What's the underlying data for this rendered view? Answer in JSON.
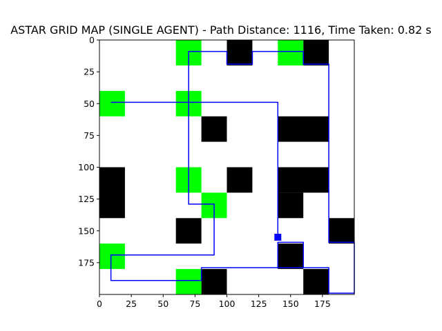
{
  "chart_data": {
    "type": "heatmap",
    "title": "ASTAR GRID MAP (SINGLE AGENT) - Path Distance: 1116, Time Taken: 0.82 s",
    "xlim": [
      0,
      200
    ],
    "ylim": [
      200,
      0
    ],
    "x_ticks": [
      0,
      25,
      50,
      75,
      100,
      125,
      150,
      175
    ],
    "y_ticks": [
      0,
      25,
      50,
      75,
      100,
      125,
      150,
      175
    ],
    "colors": {
      "background": "#ffffff",
      "obstacle": "#000000",
      "goal_cell": "#00ff00",
      "path": "#0000ff",
      "agent": "#0000ff"
    },
    "obstacles": [
      [
        100,
        0,
        20,
        20
      ],
      [
        160,
        0,
        20,
        20
      ],
      [
        80,
        60,
        20,
        20
      ],
      [
        140,
        60,
        40,
        20
      ],
      [
        0,
        100,
        20,
        40
      ],
      [
        100,
        100,
        20,
        20
      ],
      [
        140,
        100,
        40,
        20
      ],
      [
        140,
        120,
        20,
        20
      ],
      [
        60,
        140,
        20,
        20
      ],
      [
        180,
        140,
        20,
        20
      ],
      [
        140,
        160,
        20,
        20
      ],
      [
        80,
        180,
        20,
        20
      ],
      [
        160,
        180,
        20,
        20
      ]
    ],
    "goal_cells": [
      [
        60,
        0,
        20,
        20
      ],
      [
        140,
        0,
        20,
        20
      ],
      [
        0,
        40,
        20,
        20
      ],
      [
        60,
        40,
        20,
        20
      ],
      [
        60,
        100,
        20,
        20
      ],
      [
        80,
        120,
        20,
        20
      ],
      [
        0,
        160,
        20,
        20
      ],
      [
        60,
        180,
        20,
        20
      ]
    ],
    "path": [
      [
        140,
        155
      ],
      [
        140,
        49
      ],
      [
        9,
        49
      ],
      [
        9,
        49
      ],
      [
        70,
        49
      ],
      [
        70,
        9
      ],
      [
        100,
        9
      ],
      [
        100,
        19
      ],
      [
        120,
        19
      ],
      [
        120,
        9
      ],
      [
        160,
        9
      ],
      [
        160,
        19
      ],
      [
        180,
        19
      ],
      [
        180,
        159
      ],
      [
        200,
        159
      ],
      [
        200,
        199
      ],
      [
        180,
        199
      ],
      [
        180,
        179
      ],
      [
        140,
        179
      ],
      [
        140,
        159
      ],
      [
        160,
        159
      ],
      [
        160,
        179
      ],
      [
        80,
        179
      ],
      [
        80,
        189
      ],
      [
        9,
        189
      ],
      [
        9,
        169
      ],
      [
        90,
        169
      ],
      [
        90,
        129
      ],
      [
        70,
        129
      ],
      [
        70,
        49
      ]
    ],
    "agent_marker": [
      140,
      155
    ]
  }
}
